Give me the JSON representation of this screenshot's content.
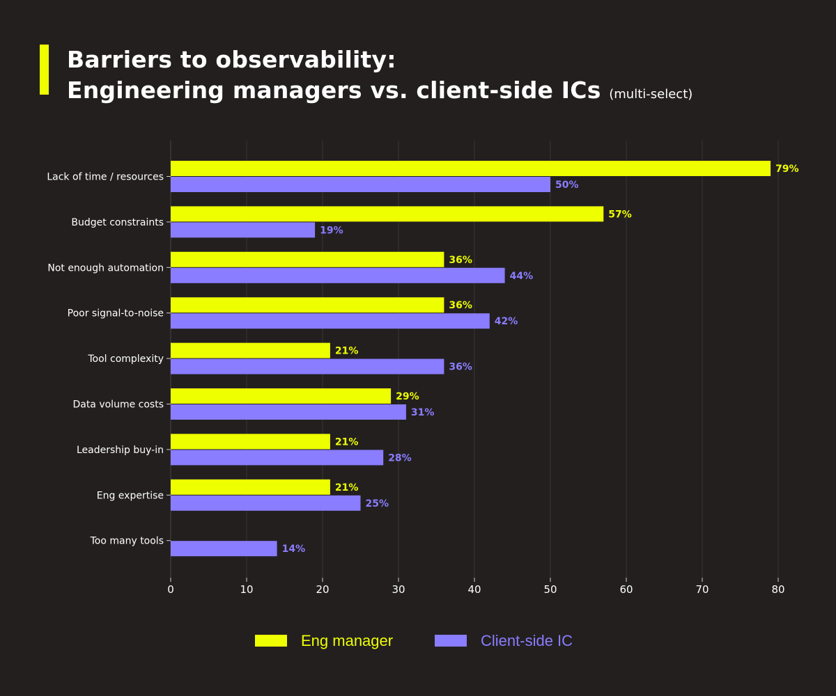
{
  "header": {
    "title_line1": "Barriers to observability:",
    "title_line2": "Engineering managers vs. client-side ICs",
    "title_note": "(multi-select)"
  },
  "colors": {
    "background": "#231f1f",
    "accent": "#eeff00",
    "eng_manager": "#eeff00",
    "client_ic": "#8a7dff",
    "grid": "#3a3535"
  },
  "chart_data": {
    "type": "bar",
    "orientation": "horizontal",
    "title": "Barriers to observability: Engineering managers vs. client-side ICs",
    "subtitle": "(multi-select)",
    "categories": [
      "Lack of time / resources",
      "Budget constraints",
      "Not enough automation",
      "Poor signal-to-noise",
      "Tool complexity",
      "Data volume costs",
      "Leadership buy-in",
      "Eng expertise",
      "Too many tools"
    ],
    "series": [
      {
        "name": "Eng manager",
        "color": "#eeff00",
        "values": [
          79,
          57,
          36,
          36,
          21,
          29,
          21,
          21,
          null
        ],
        "labels": [
          "79%",
          "57%",
          "36%",
          "36%",
          "21%",
          "29%",
          "21%",
          "21%",
          null
        ]
      },
      {
        "name": "Client-side IC",
        "color": "#8a7dff",
        "values": [
          50,
          19,
          44,
          42,
          36,
          31,
          28,
          25,
          14
        ],
        "labels": [
          "50%",
          "19%",
          "44%",
          "42%",
          "36%",
          "31%",
          "28%",
          "25%",
          "14%"
        ]
      }
    ],
    "xlim": [
      0,
      80
    ],
    "xticks": [
      0,
      10,
      20,
      30,
      40,
      50,
      60,
      70,
      80
    ],
    "xlabel": "",
    "ylabel": "",
    "grid": true,
    "legend_position": "bottom"
  }
}
